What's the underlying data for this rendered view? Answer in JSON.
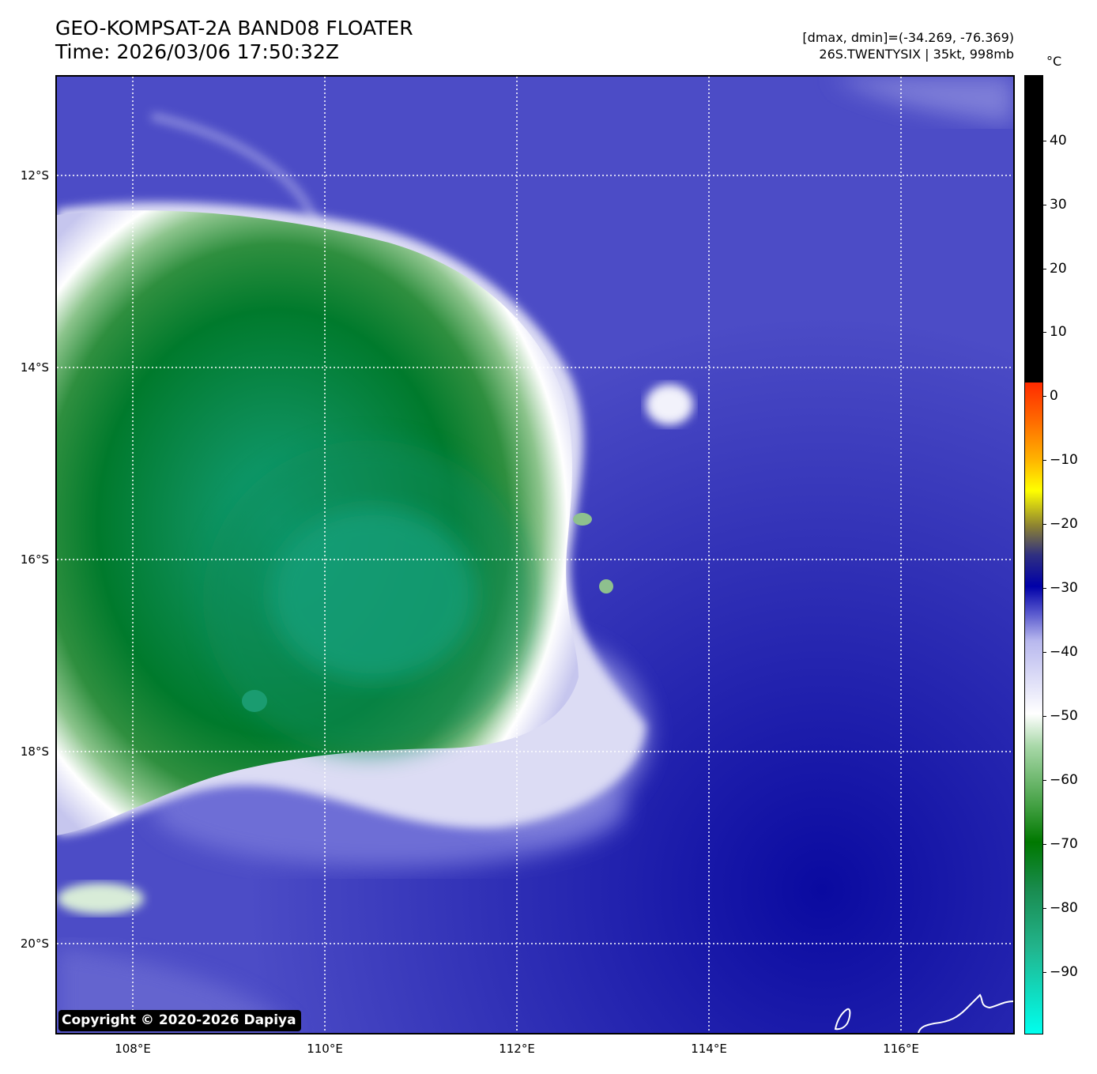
{
  "header": {
    "title": "GEO-KOMPSAT-2A BAND08 FLOATER",
    "time": "Time: 2026/03/06 17:50:32Z",
    "range": "[dmax, dmin]=(-34.269, -76.369)",
    "storm": "26S.TWENTYSIX | 35kt, 998mb"
  },
  "map": {
    "lat_labels": [
      "12°S",
      "14°S",
      "16°S",
      "18°S",
      "20°S"
    ],
    "lon_labels": [
      "108°E",
      "110°E",
      "112°E",
      "114°E",
      "116°E"
    ],
    "copyright": "Copyright © 2020-2026 Dapiya"
  },
  "colorbar": {
    "unit": "°C",
    "labels": [
      "40",
      "30",
      "20",
      "10",
      "0",
      "−10",
      "−20",
      "−30",
      "−40",
      "−50",
      "−60",
      "−70",
      "−80",
      "−90"
    ],
    "colors": {
      "warm": "#000000",
      "mid_blue": "#2b2cb4",
      "white": "#ffffff",
      "green": "#007800",
      "teal": "#00ffee"
    }
  }
}
